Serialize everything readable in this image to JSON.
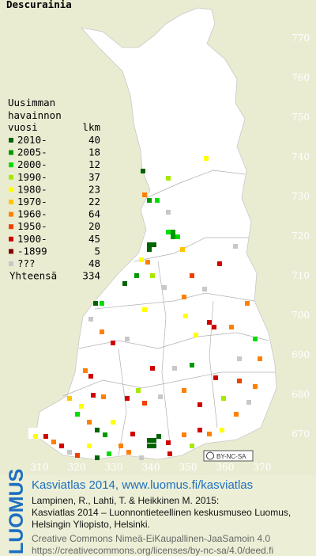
{
  "title": "Descurainia",
  "legend": {
    "heading": [
      "Uusimman",
      "havainnon",
      "vuosi"
    ],
    "count_heading": "lkm",
    "entries": [
      {
        "label": "2010-",
        "count": 40,
        "color": "#006400"
      },
      {
        "label": "2005-",
        "count": 18,
        "color": "#009a00"
      },
      {
        "label": "2000-",
        "count": 12,
        "color": "#00dd00"
      },
      {
        "label": "1990-",
        "count": 37,
        "color": "#a8e800"
      },
      {
        "label": "1980-",
        "count": 23,
        "color": "#ffff00"
      },
      {
        "label": "1970-",
        "count": 22,
        "color": "#ffc400"
      },
      {
        "label": "1960-",
        "count": 64,
        "color": "#ff8000"
      },
      {
        "label": "1950-",
        "count": 20,
        "color": "#f04000"
      },
      {
        "label": "1900-",
        "count": 45,
        "color": "#d00000"
      },
      {
        "label": "-1899",
        "count": 5,
        "color": "#800000"
      },
      {
        "label": "???",
        "count": 48,
        "color": "#c8c8c8"
      }
    ],
    "total_label": "Yhteensä",
    "total": 334
  },
  "grid": {
    "northing": [
      770,
      760,
      750,
      740,
      730,
      720,
      710,
      700,
      690,
      680,
      670
    ],
    "easting": [
      310,
      320,
      330,
      340,
      350,
      360,
      370
    ]
  },
  "license_badge": "BY-NC-SA",
  "footer": {
    "brand": "LUOMUS",
    "link": "Kasviatlas 2014, www.luomus.fi/kasviatlas",
    "citation": [
      "Lampinen, R., Lahti, T. & Heikkinen M. 2015:",
      "Kasviatlas 2014 – Luonnontieteellinen keskusmuseo Luomus,",
      "Helsingin Yliopisto, Helsinki."
    ],
    "license": [
      "Creative Commons Nimeä-EiKaupallinen-JaaSamoin 4.0",
      "https://creativecommons.org/licenses/by-nc-sa/4.0/deed.fi"
    ]
  }
}
